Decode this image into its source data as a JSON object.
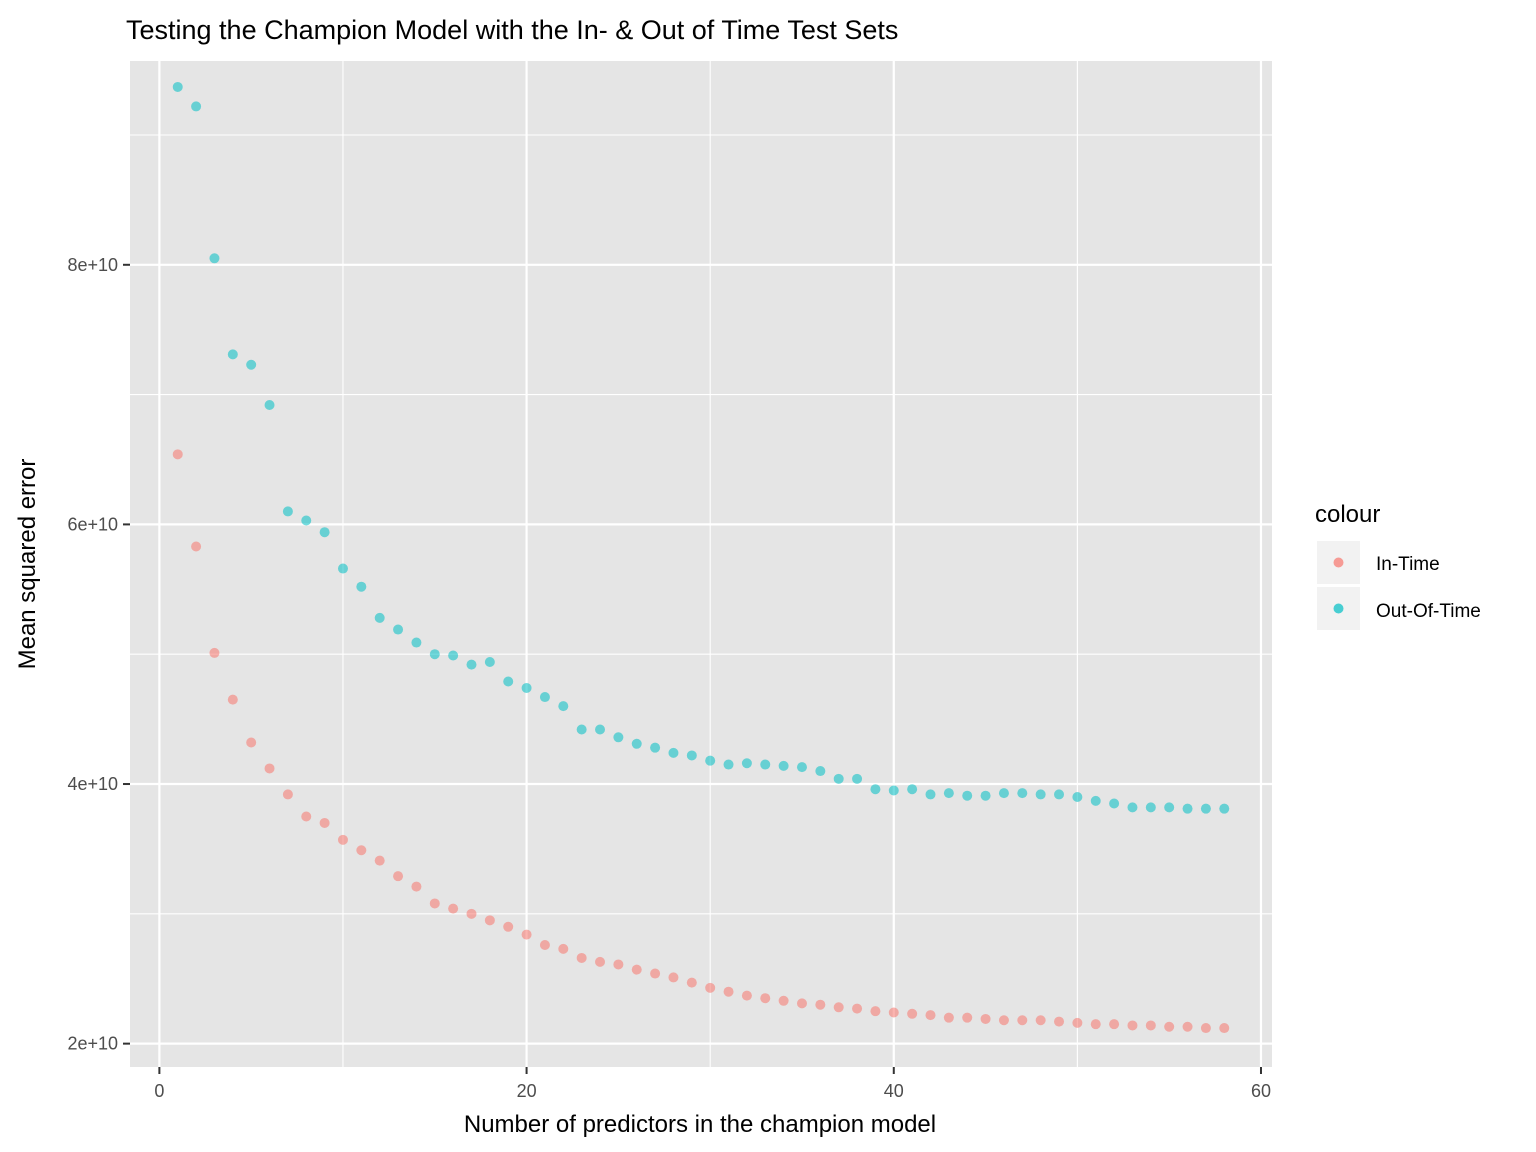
{
  "chart_data": {
    "type": "scatter",
    "title": "Testing the Champion Model with the In- & Out of Time Test Sets",
    "xlabel": "Number of predictors in the champion model",
    "ylabel": "Mean squared error",
    "xlim": [
      -1.6,
      60.6
    ],
    "ylim": [
      18200000000.0,
      95700000000.0
    ],
    "x_ticks": [
      0,
      20,
      40,
      60
    ],
    "x_tick_labels": [
      "0",
      "20",
      "40",
      "60"
    ],
    "y_ticks": [
      20000000000.0,
      40000000000.0,
      60000000000.0,
      80000000000.0
    ],
    "y_tick_labels": [
      "2e+10",
      "4e+10",
      "6e+10",
      "8e+10"
    ],
    "grid": true,
    "legend": {
      "title": "colour",
      "position": "right"
    },
    "series": [
      {
        "name": "In-Time",
        "color": "#F8766D",
        "x": [
          1,
          2,
          3,
          4,
          5,
          6,
          7,
          8,
          9,
          10,
          11,
          12,
          13,
          14,
          15,
          16,
          17,
          18,
          19,
          20,
          21,
          22,
          23,
          24,
          25,
          26,
          27,
          28,
          29,
          30,
          31,
          32,
          33,
          34,
          35,
          36,
          37,
          38,
          39,
          40,
          41,
          42,
          43,
          44,
          45,
          46,
          47,
          48,
          49,
          50,
          51,
          52,
          53,
          54,
          55,
          56,
          57,
          58
        ],
        "y": [
          65400000000.0,
          58300000000.0,
          50100000000.0,
          46500000000.0,
          43200000000.0,
          41200000000.0,
          39200000000.0,
          37500000000.0,
          37000000000.0,
          35700000000.0,
          34900000000.0,
          34100000000.0,
          32900000000.0,
          32100000000.0,
          30800000000.0,
          30400000000.0,
          30000000000.0,
          29500000000.0,
          29000000000.0,
          28400000000.0,
          27600000000.0,
          27300000000.0,
          26600000000.0,
          26300000000.0,
          26100000000.0,
          25700000000.0,
          25400000000.0,
          25100000000.0,
          24700000000.0,
          24300000000.0,
          24000000000.0,
          23700000000.0,
          23500000000.0,
          23300000000.0,
          23100000000.0,
          23000000000.0,
          22800000000.0,
          22700000000.0,
          22500000000.0,
          22400000000.0,
          22300000000.0,
          22200000000.0,
          22000000000.0,
          22000000000.0,
          21900000000.0,
          21800000000.0,
          21800000000.0,
          21800000000.0,
          21700000000.0,
          21600000000.0,
          21500000000.0,
          21500000000.0,
          21400000000.0,
          21400000000.0,
          21300000000.0,
          21300000000.0,
          21200000000.0,
          21200000000.0
        ]
      },
      {
        "name": "Out-Of-Time",
        "color": "#00BFC4",
        "x": [
          1,
          2,
          3,
          4,
          5,
          6,
          7,
          8,
          9,
          10,
          11,
          12,
          13,
          14,
          15,
          16,
          17,
          18,
          19,
          20,
          21,
          22,
          23,
          24,
          25,
          26,
          27,
          28,
          29,
          30,
          31,
          32,
          33,
          34,
          35,
          36,
          37,
          38,
          39,
          40,
          41,
          42,
          43,
          44,
          45,
          46,
          47,
          48,
          49,
          50,
          51,
          52,
          53,
          54,
          55,
          56,
          57,
          58
        ],
        "y": [
          93700000000.0,
          92200000000.0,
          80500000000.0,
          73100000000.0,
          72300000000.0,
          69200000000.0,
          61000000000.0,
          60300000000.0,
          59400000000.0,
          56600000000.0,
          55200000000.0,
          52800000000.0,
          51900000000.0,
          50900000000.0,
          50000000000.0,
          49900000000.0,
          49200000000.0,
          49400000000.0,
          47900000000.0,
          47400000000.0,
          46700000000.0,
          46000000000.0,
          44200000000.0,
          44200000000.0,
          43600000000.0,
          43100000000.0,
          42800000000.0,
          42400000000.0,
          42200000000.0,
          41800000000.0,
          41500000000.0,
          41600000000.0,
          41500000000.0,
          41400000000.0,
          41300000000.0,
          41000000000.0,
          40400000000.0,
          40400000000.0,
          39600000000.0,
          39500000000.0,
          39600000000.0,
          39200000000.0,
          39300000000.0,
          39100000000.0,
          39100000000.0,
          39300000000.0,
          39300000000.0,
          39200000000.0,
          39200000000.0,
          39000000000.0,
          38700000000.0,
          38500000000.0,
          38200000000.0,
          38200000000.0,
          38200000000.0,
          38100000000.0,
          38100000000.0,
          38100000000.0
        ]
      }
    ]
  }
}
